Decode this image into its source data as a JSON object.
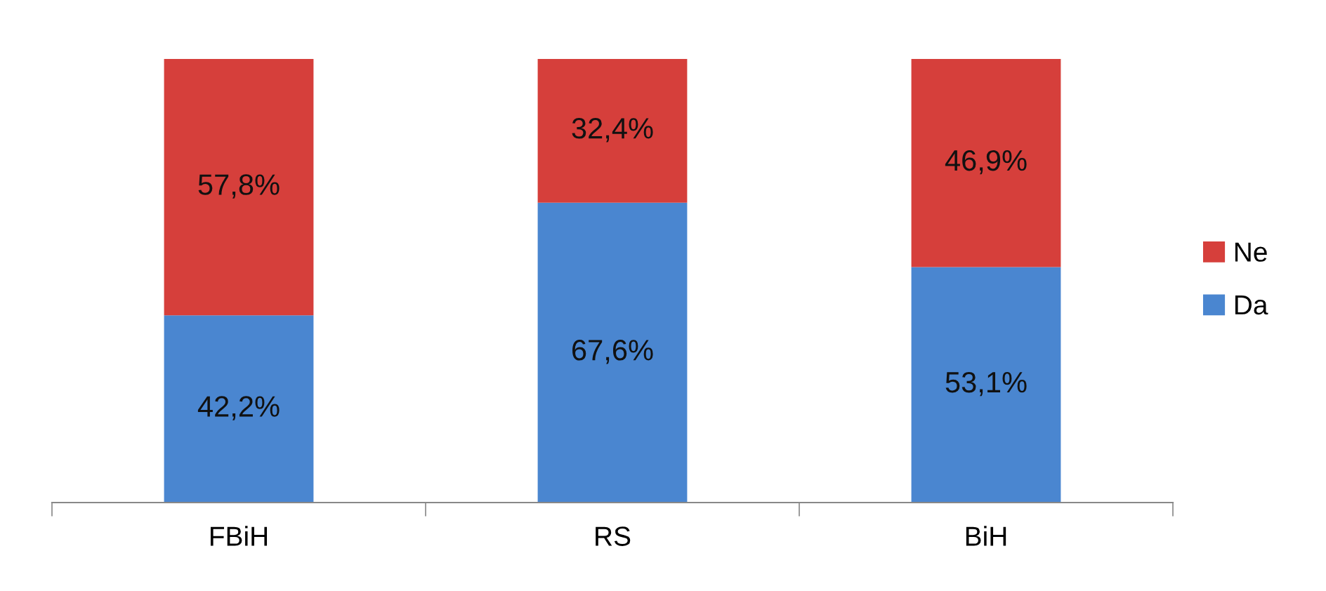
{
  "chart_data": {
    "type": "bar",
    "stacked": true,
    "categories": [
      "FBiH",
      "RS",
      "BiH"
    ],
    "series": [
      {
        "name": "Da",
        "color": "#4a86d0",
        "values": [
          42.2,
          67.6,
          53.1
        ],
        "value_labels": [
          "42,2%",
          "67,6%",
          "53,1%"
        ]
      },
      {
        "name": "Ne",
        "color": "#d63f3b",
        "values": [
          57.8,
          32.4,
          46.9
        ],
        "value_labels": [
          "57,8%",
          "32,4%",
          "46,9%"
        ]
      }
    ],
    "ylim": [
      0,
      100
    ],
    "tick_labels": "x",
    "grid": false,
    "legend": "right"
  }
}
